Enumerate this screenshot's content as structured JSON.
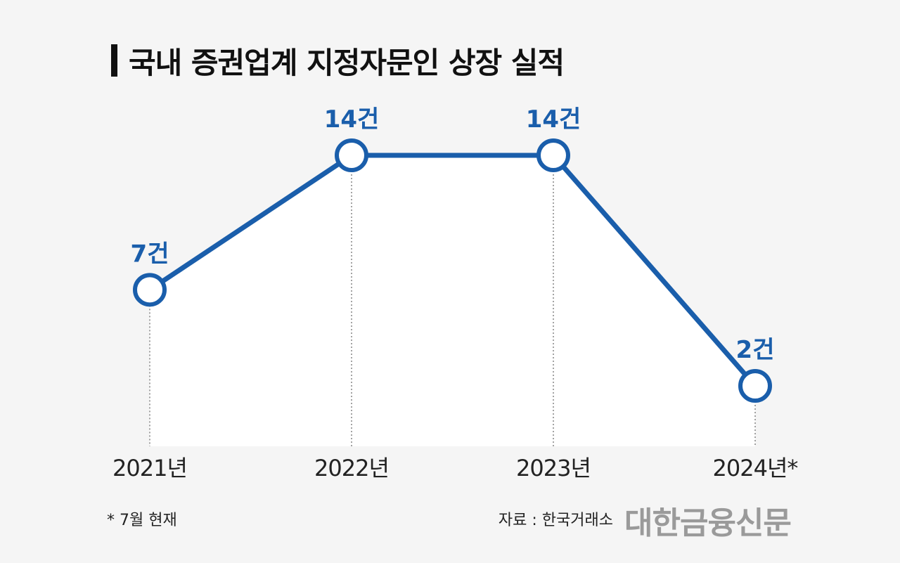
{
  "header": {
    "title": "국내 증권업계 지정자문인 상장 실적"
  },
  "chart_data": {
    "type": "line",
    "title": "국내 증권업계 지정자문인 상장 실적",
    "categories": [
      "2021년",
      "2022년",
      "2023년",
      "2024년*"
    ],
    "values": [
      7,
      14,
      14,
      2
    ],
    "data_labels": [
      "7건",
      "14건",
      "14건",
      "2건"
    ],
    "ylim": [
      0,
      14
    ],
    "grid": false,
    "colors": {
      "line": "#1a5eab",
      "label": "#1a5eab",
      "area": "#ffffff",
      "guide": "#666666"
    }
  },
  "footer": {
    "note": "* 7월 현재",
    "source": "자료 : 한국거래소",
    "logo": "대한금융신문"
  }
}
